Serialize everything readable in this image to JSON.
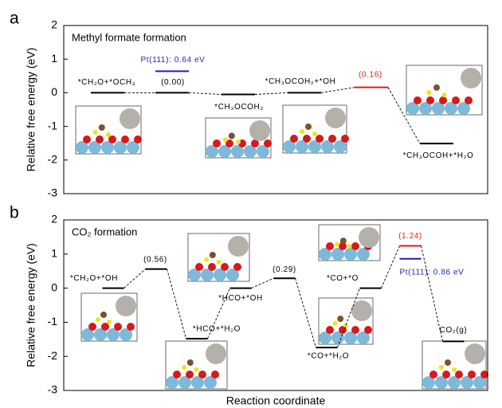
{
  "chart_data": [
    {
      "type": "step",
      "panel_label": "a",
      "title": "Methyl formate formation",
      "ylabel": "Relative free energy (eV)",
      "categories": [
        "*CH₂O+*OCH₃",
        null,
        "*CH₃OCOH₂",
        "*CH₃OCOH₂+*OH",
        null,
        "*CH₃OCOH+*H₂O"
      ],
      "values": [
        0,
        0,
        -0.05,
        0,
        0.16,
        -1.51
      ],
      "value_labels": [
        null,
        "(0.00)",
        null,
        null,
        "(0.16)",
        null
      ],
      "colors": [
        "#000000",
        "#000000",
        "#000000",
        "#000000",
        "#e41a1c",
        "#000000"
      ],
      "reference": {
        "label": "Pt(111): 0.64 eV",
        "value": 0.64,
        "color": "#1f1fbf",
        "at": 1
      },
      "ylim": [
        -3,
        2
      ],
      "yticks": [
        -3,
        -2,
        -1,
        0,
        1,
        2
      ]
    },
    {
      "type": "step",
      "panel_label": "b",
      "title": "CO₂ formation",
      "ylabel": "Relative free energy (eV)",
      "xlabel": "Reaction coordinate",
      "categories": [
        "*CH₂O+*OH",
        null,
        "*HCO+*H₂O",
        "*HCO+*OH",
        null,
        "*CO+*H₂O",
        "*CO+*O",
        null,
        "CO₂(g)"
      ],
      "values": [
        0,
        0.56,
        -1.48,
        0,
        0.29,
        -1.74,
        0,
        1.24,
        -1.56
      ],
      "value_labels": [
        null,
        "(0.56)",
        null,
        null,
        "(0.29)",
        null,
        null,
        "(1.24)",
        null
      ],
      "colors": [
        "#000000",
        "#000000",
        "#000000",
        "#000000",
        "#000000",
        "#000000",
        "#000000",
        "#e41a1c",
        "#000000"
      ],
      "reference": {
        "label": "Pt(111): 0.86 eV",
        "value": 0.86,
        "color": "#1f1fbf",
        "at": 7
      },
      "ylim": [
        -3,
        2
      ],
      "yticks": [
        -3,
        -2,
        -1,
        0,
        1,
        2
      ]
    }
  ]
}
